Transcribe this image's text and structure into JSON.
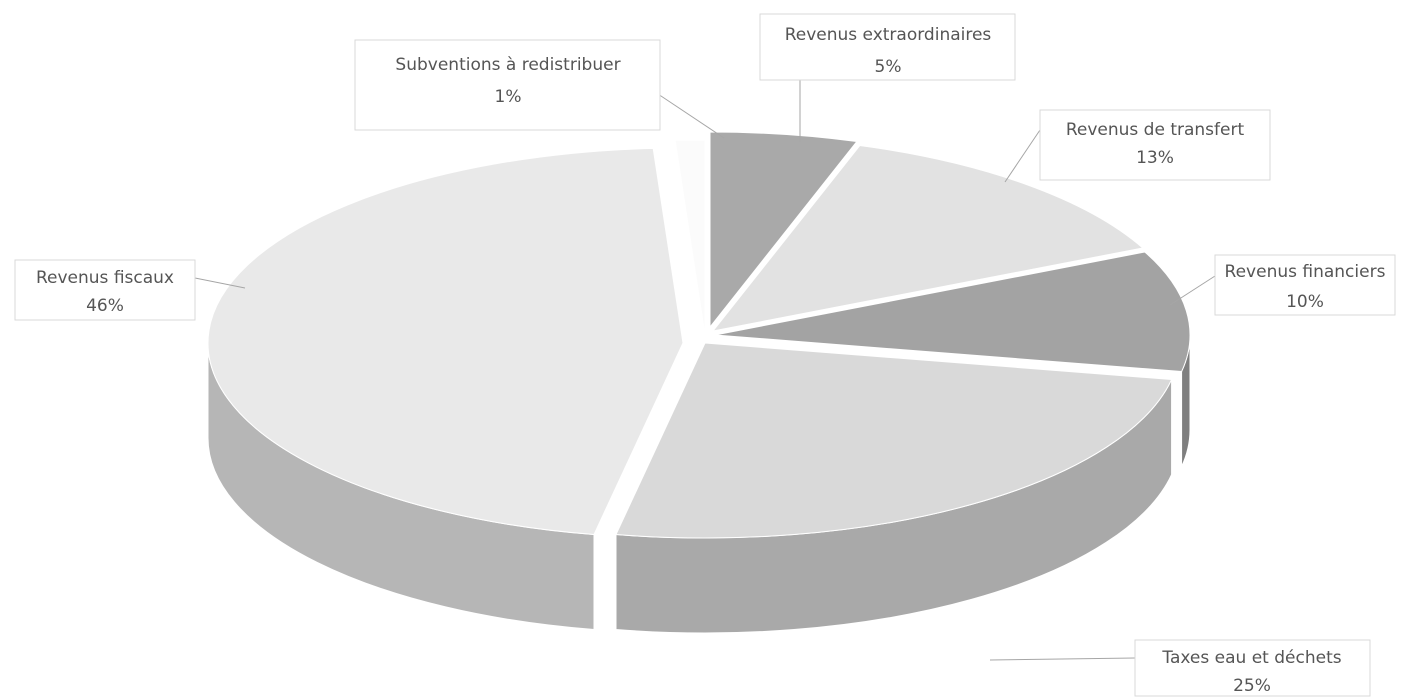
{
  "chart_data": {
    "type": "pie3d",
    "categories": [
      "Revenus extraordinaires",
      "Revenus de transfert",
      "Revenus financiers",
      "Taxes eau et déchets",
      "Revenus fiscaux",
      "Subventions à redistribuer"
    ],
    "values": [
      5,
      13,
      10,
      25,
      46,
      1
    ],
    "value_labels": [
      "5%",
      "13%",
      "10%",
      "25%",
      "46%",
      "1%"
    ],
    "colors": [
      "#a9a9a9",
      "#e2e2e2",
      "#a3a3a3",
      "#d9d9d9",
      "#e9e9e9",
      "#fbfbfb"
    ]
  }
}
